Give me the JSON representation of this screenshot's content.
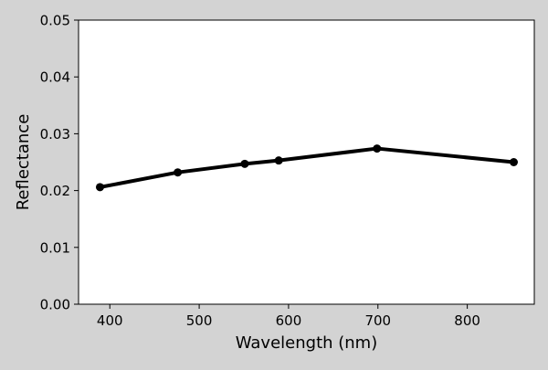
{
  "chart_data": {
    "type": "line",
    "title": "",
    "xlabel": "Wavelength (nm)",
    "ylabel": "Reflectance",
    "xlim": [
      365,
      875
    ],
    "ylim": [
      0.0,
      0.05
    ],
    "x_ticks": [
      400,
      500,
      600,
      700,
      800
    ],
    "x_tick_labels": [
      "400",
      "500",
      "600",
      "700",
      "800"
    ],
    "y_ticks": [
      0.0,
      0.01,
      0.02,
      0.03,
      0.04,
      0.05
    ],
    "y_tick_labels": [
      "0.00",
      "0.01",
      "0.02",
      "0.03",
      "0.04",
      "0.05"
    ],
    "grid": false,
    "legend": "none",
    "series": [
      {
        "x": [
          389,
          476,
          551,
          589,
          699,
          852
        ],
        "y": [
          0.0206,
          0.0232,
          0.0247,
          0.0253,
          0.0274,
          0.025
        ],
        "color": "#000000",
        "marker": "circle"
      }
    ]
  },
  "colors": {
    "figure_background": "#d3d3d3",
    "plot_background": "#ffffff",
    "line": "#000000"
  }
}
